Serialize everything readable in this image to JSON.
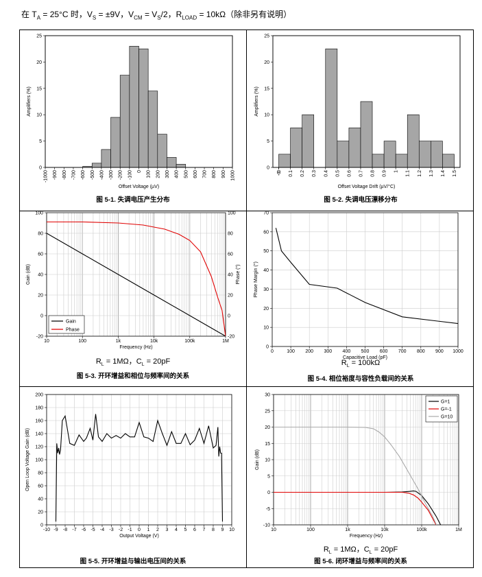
{
  "header": {
    "ta": "T",
    "ta_sub": "A",
    "ta_val": " = 25°C 时，V",
    "vs_sub": "S",
    "vs_val": " = ±9V，V",
    "vcm_sub": "CM",
    "vcm_val": " = V",
    "vs2_sub": "S",
    "vs2_val": "/2，R",
    "rl_sub": "LOAD",
    "rl_val": " = 10kΩ（除非另有说明）",
    "prefix": "在 "
  },
  "captions": {
    "fig1": "图 5-1. 失调电压产生分布",
    "fig2": "图 5-2. 失调电压漂移分布",
    "fig3": "图 5-3. 开环增益和相位与频率间的关系",
    "fig4": "图 5-4. 相位裕度与容性负载间的关系",
    "fig5": "图 5-5. 开环增益与输出电压间的关系",
    "fig6": "图 5-6. 闭环增益与频率间的关系"
  },
  "conditions": {
    "fig3": {
      "a": "R",
      "a_sub": "L",
      "a_val": " = 1MΩ，C",
      "b_sub": "L",
      "b_val": " = 20pF"
    },
    "fig4": {
      "a": "R",
      "a_sub": "L",
      "a_val": " = 100kΩ"
    },
    "fig6": {
      "a": "R",
      "a_sub": "L",
      "a_val": " = 1MΩ，C",
      "b_sub": "L",
      "b_val": " = 20pF"
    }
  },
  "chart_data": [
    {
      "id": "fig1",
      "type": "bar",
      "xlabel": "Offset Voltage (µV)",
      "ylabel": "Amplifiers (%)",
      "xlim": [
        -1000,
        1000
      ],
      "ylim": [
        0,
        25
      ],
      "x_ticks": [
        "-1000",
        "-900",
        "-800",
        "-700",
        "-600",
        "-500",
        "-400",
        "-300",
        "-200",
        "-100",
        "0",
        "100",
        "200",
        "300",
        "400",
        "500",
        "600",
        "700",
        "800",
        "900",
        "1000"
      ],
      "y_ticks": [
        "0",
        "5",
        "10",
        "15",
        "20",
        "25"
      ],
      "bins": [
        [
          -600,
          -500
        ],
        [
          -500,
          -400
        ],
        [
          -400,
          -300
        ],
        [
          -300,
          -200
        ],
        [
          -200,
          -100
        ],
        [
          -100,
          0
        ],
        [
          0,
          100
        ],
        [
          100,
          200
        ],
        [
          200,
          300
        ],
        [
          300,
          400
        ],
        [
          400,
          500
        ]
      ],
      "values": [
        0.2,
        0.8,
        3.4,
        9.5,
        17.5,
        23,
        22.5,
        14.5,
        6.3,
        1.9,
        0.6
      ]
    },
    {
      "id": "fig2",
      "type": "bar",
      "xlabel": "Offset Voltage Drift (µV/°C)",
      "ylabel": "Amplifiers (%)",
      "xlim": [
        -0.05,
        1.55
      ],
      "ylim": [
        0,
        25
      ],
      "x_ticks": [
        "-0.",
        "0",
        "0.1",
        "0.2",
        "0.3",
        "0.4",
        "0.5",
        "0.6",
        "0.7",
        "0.8",
        "0.9",
        "1",
        "1.1",
        "1.2",
        "1.3",
        "1.4",
        "1.5"
      ],
      "y_ticks": [
        "0",
        "5",
        "10",
        "15",
        "20",
        "25"
      ],
      "bins": [
        [
          0,
          0.1
        ],
        [
          0.1,
          0.2
        ],
        [
          0.2,
          0.3
        ],
        [
          0.4,
          0.5
        ],
        [
          0.5,
          0.6
        ],
        [
          0.6,
          0.7
        ],
        [
          0.7,
          0.8
        ],
        [
          0.8,
          0.9
        ],
        [
          0.9,
          1.0
        ],
        [
          1.0,
          1.1
        ],
        [
          1.1,
          1.2
        ],
        [
          1.2,
          1.3
        ],
        [
          1.3,
          1.4
        ],
        [
          1.4,
          1.5
        ]
      ],
      "values": [
        2.5,
        7.5,
        10,
        22.5,
        5,
        7.5,
        12.5,
        2.5,
        5,
        2.5,
        10,
        5,
        5,
        2.5
      ]
    },
    {
      "id": "fig3",
      "type": "line",
      "xscale": "log",
      "xlabel": "Frequency (Hz)",
      "ylabel": "Gain (dB)",
      "y2label": "Phase (°)",
      "xlim": [
        10,
        1000000
      ],
      "ylim": [
        -20,
        100
      ],
      "y2lim": [
        -20,
        100
      ],
      "x_ticks": [
        "10",
        "100",
        "1k",
        "10k",
        "100k",
        "1M"
      ],
      "y_ticks": [
        "-20",
        "0",
        "20",
        "40",
        "60",
        "80",
        "100"
      ],
      "y2_ticks": [
        "-20",
        "0",
        "20",
        "40",
        "60",
        "80",
        "100"
      ],
      "series": [
        {
          "name": "Gain",
          "color": "#000000",
          "x": [
            10,
            100,
            1000,
            10000,
            100000,
            500000,
            1000000
          ],
          "y": [
            80,
            60,
            40,
            20,
            0,
            -14,
            -20
          ]
        },
        {
          "name": "Phase",
          "color": "#e00000",
          "x": [
            10,
            100,
            1000,
            5000,
            20000,
            50000,
            100000,
            200000,
            400000,
            600000,
            800000,
            1000000
          ],
          "y": [
            91,
            91,
            90,
            88,
            84,
            79,
            73,
            62,
            38,
            18,
            5,
            -20
          ]
        }
      ]
    },
    {
      "id": "fig4",
      "type": "line",
      "xlabel": "Capacitive Load (pF)",
      "ylabel": "Phase Margin (°)",
      "xlim": [
        0,
        1000
      ],
      "ylim": [
        0,
        70
      ],
      "x_ticks": [
        "0",
        "100",
        "200",
        "300",
        "400",
        "500",
        "600",
        "700",
        "800",
        "900",
        "1000"
      ],
      "y_ticks": [
        "0",
        "10",
        "20",
        "30",
        "40",
        "50",
        "60",
        "70"
      ],
      "series": [
        {
          "name": "Phase Margin",
          "color": "#000000",
          "x": [
            20,
            50,
            100,
            200,
            350,
            500,
            700,
            1000
          ],
          "y": [
            62,
            50,
            44,
            32.5,
            30.5,
            23,
            15.5,
            12
          ]
        }
      ]
    },
    {
      "id": "fig5",
      "type": "line",
      "xlabel": "Output Voltage (V)",
      "ylabel": "Open Loop Voltage Gain (dB)",
      "xlim": [
        -10,
        10
      ],
      "ylim": [
        0,
        200
      ],
      "x_ticks": [
        "-10",
        "-9",
        "-8",
        "-7",
        "-6",
        "-5",
        "-4",
        "-3",
        "-2",
        "-1",
        "0",
        "1",
        "2",
        "3",
        "4",
        "5",
        "6",
        "7",
        "8",
        "9",
        "10"
      ],
      "y_ticks": [
        "0",
        "20",
        "40",
        "60",
        "80",
        "100",
        "120",
        "140",
        "160",
        "180",
        "200"
      ],
      "series": [
        {
          "name": "Gain",
          "color": "#000000",
          "x": [
            -9,
            -8.9,
            -8.8,
            -8.7,
            -8.6,
            -8.5,
            -8.3,
            -8,
            -7.5,
            -7,
            -6.5,
            -6,
            -5.7,
            -5.3,
            -5,
            -4.7,
            -4.4,
            -4,
            -3.5,
            -3,
            -2.5,
            -2,
            -1.5,
            -1,
            -0.5,
            0,
            0.5,
            1,
            1.5,
            2,
            2.5,
            3,
            3.5,
            4,
            4.5,
            5,
            5.5,
            6,
            6.5,
            7,
            7.5,
            8,
            8.3,
            8.5,
            8.6,
            8.7,
            8.8,
            8.9,
            9
          ],
          "y": [
            5,
            125,
            110,
            118,
            108,
            115,
            160,
            167,
            125,
            122,
            138,
            128,
            133,
            148,
            130,
            170,
            135,
            128,
            140,
            133,
            137,
            133,
            140,
            135,
            135,
            157,
            135,
            133,
            128,
            160,
            140,
            122,
            143,
            125,
            125,
            140,
            123,
            130,
            148,
            125,
            152,
            118,
            122,
            150,
            105,
            120,
            110,
            110,
            5
          ]
        }
      ]
    },
    {
      "id": "fig6",
      "type": "line",
      "xscale": "log",
      "xlabel": "Frequency (Hz)",
      "ylabel": "Gain (dB)",
      "xlim": [
        10,
        1000000
      ],
      "ylim": [
        -10,
        30
      ],
      "x_ticks": [
        "10",
        "100",
        "1k",
        "10k",
        "100k",
        "1M"
      ],
      "y_ticks": [
        "-10",
        "-5",
        "0",
        "5",
        "10",
        "15",
        "20",
        "25",
        "30"
      ],
      "legend": [
        "G=1",
        "G=-1",
        "G=10"
      ],
      "series": [
        {
          "name": "G=1",
          "color": "#000000",
          "x": [
            10,
            10000,
            30000,
            50000,
            60000,
            70000,
            100000,
            150000,
            250000,
            400000
          ],
          "y": [
            0,
            0,
            0.1,
            0.3,
            0.4,
            0.3,
            -1,
            -3.5,
            -7.5,
            -12
          ]
        },
        {
          "name": "G=-1",
          "color": "#e00000",
          "x": [
            10,
            10000,
            30000,
            45000,
            60000,
            80000,
            100000,
            150000,
            220000,
            300000
          ],
          "y": [
            0,
            0,
            0,
            -0.3,
            -0.8,
            -1.8,
            -3,
            -5.5,
            -9,
            -12
          ]
        },
        {
          "name": "G=10",
          "color": "#aaaaaa",
          "x": [
            10,
            1000,
            3000,
            5000,
            7000,
            10000,
            15000,
            25000,
            40000,
            60000,
            80000,
            120000,
            200000,
            300000
          ],
          "y": [
            20,
            20,
            19.9,
            19.5,
            18.5,
            17,
            14.5,
            11,
            7,
            3.5,
            1,
            -3,
            -7.5,
            -12
          ]
        }
      ]
    }
  ]
}
